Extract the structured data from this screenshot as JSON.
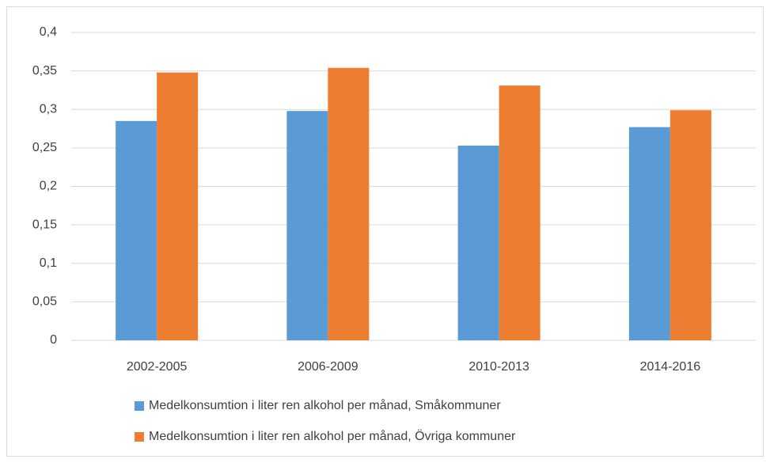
{
  "chart_data": {
    "type": "bar",
    "categories": [
      "2002-2005",
      "2006-2009",
      "2010-2013",
      "2014-2016"
    ],
    "series": [
      {
        "name": "Medelkonsumtion i liter ren alkohol per månad, Småkommuner",
        "color": "#5b9bd5",
        "values": [
          0.285,
          0.298,
          0.253,
          0.277
        ]
      },
      {
        "name": "Medelkonsumtion i liter ren alkohol per månad, Övriga kommuner",
        "color": "#ed7d31",
        "values": [
          0.348,
          0.354,
          0.331,
          0.299
        ]
      }
    ],
    "ylim": [
      0,
      0.4
    ],
    "yticks": [
      0,
      {
        "value": 0.05,
        "label": "0,05"
      },
      {
        "value": 0.1,
        "label": "0,1"
      },
      {
        "value": 0.15,
        "label": "0,15"
      },
      {
        "value": 0.2,
        "label": "0,2"
      },
      {
        "value": 0.25,
        "label": "0,25"
      },
      {
        "value": 0.3,
        "label": "0,3"
      },
      {
        "value": 0.35,
        "label": "0,35"
      },
      {
        "value": 0.4,
        "label": "0,4"
      }
    ],
    "grid": true,
    "legend": "bottom"
  }
}
